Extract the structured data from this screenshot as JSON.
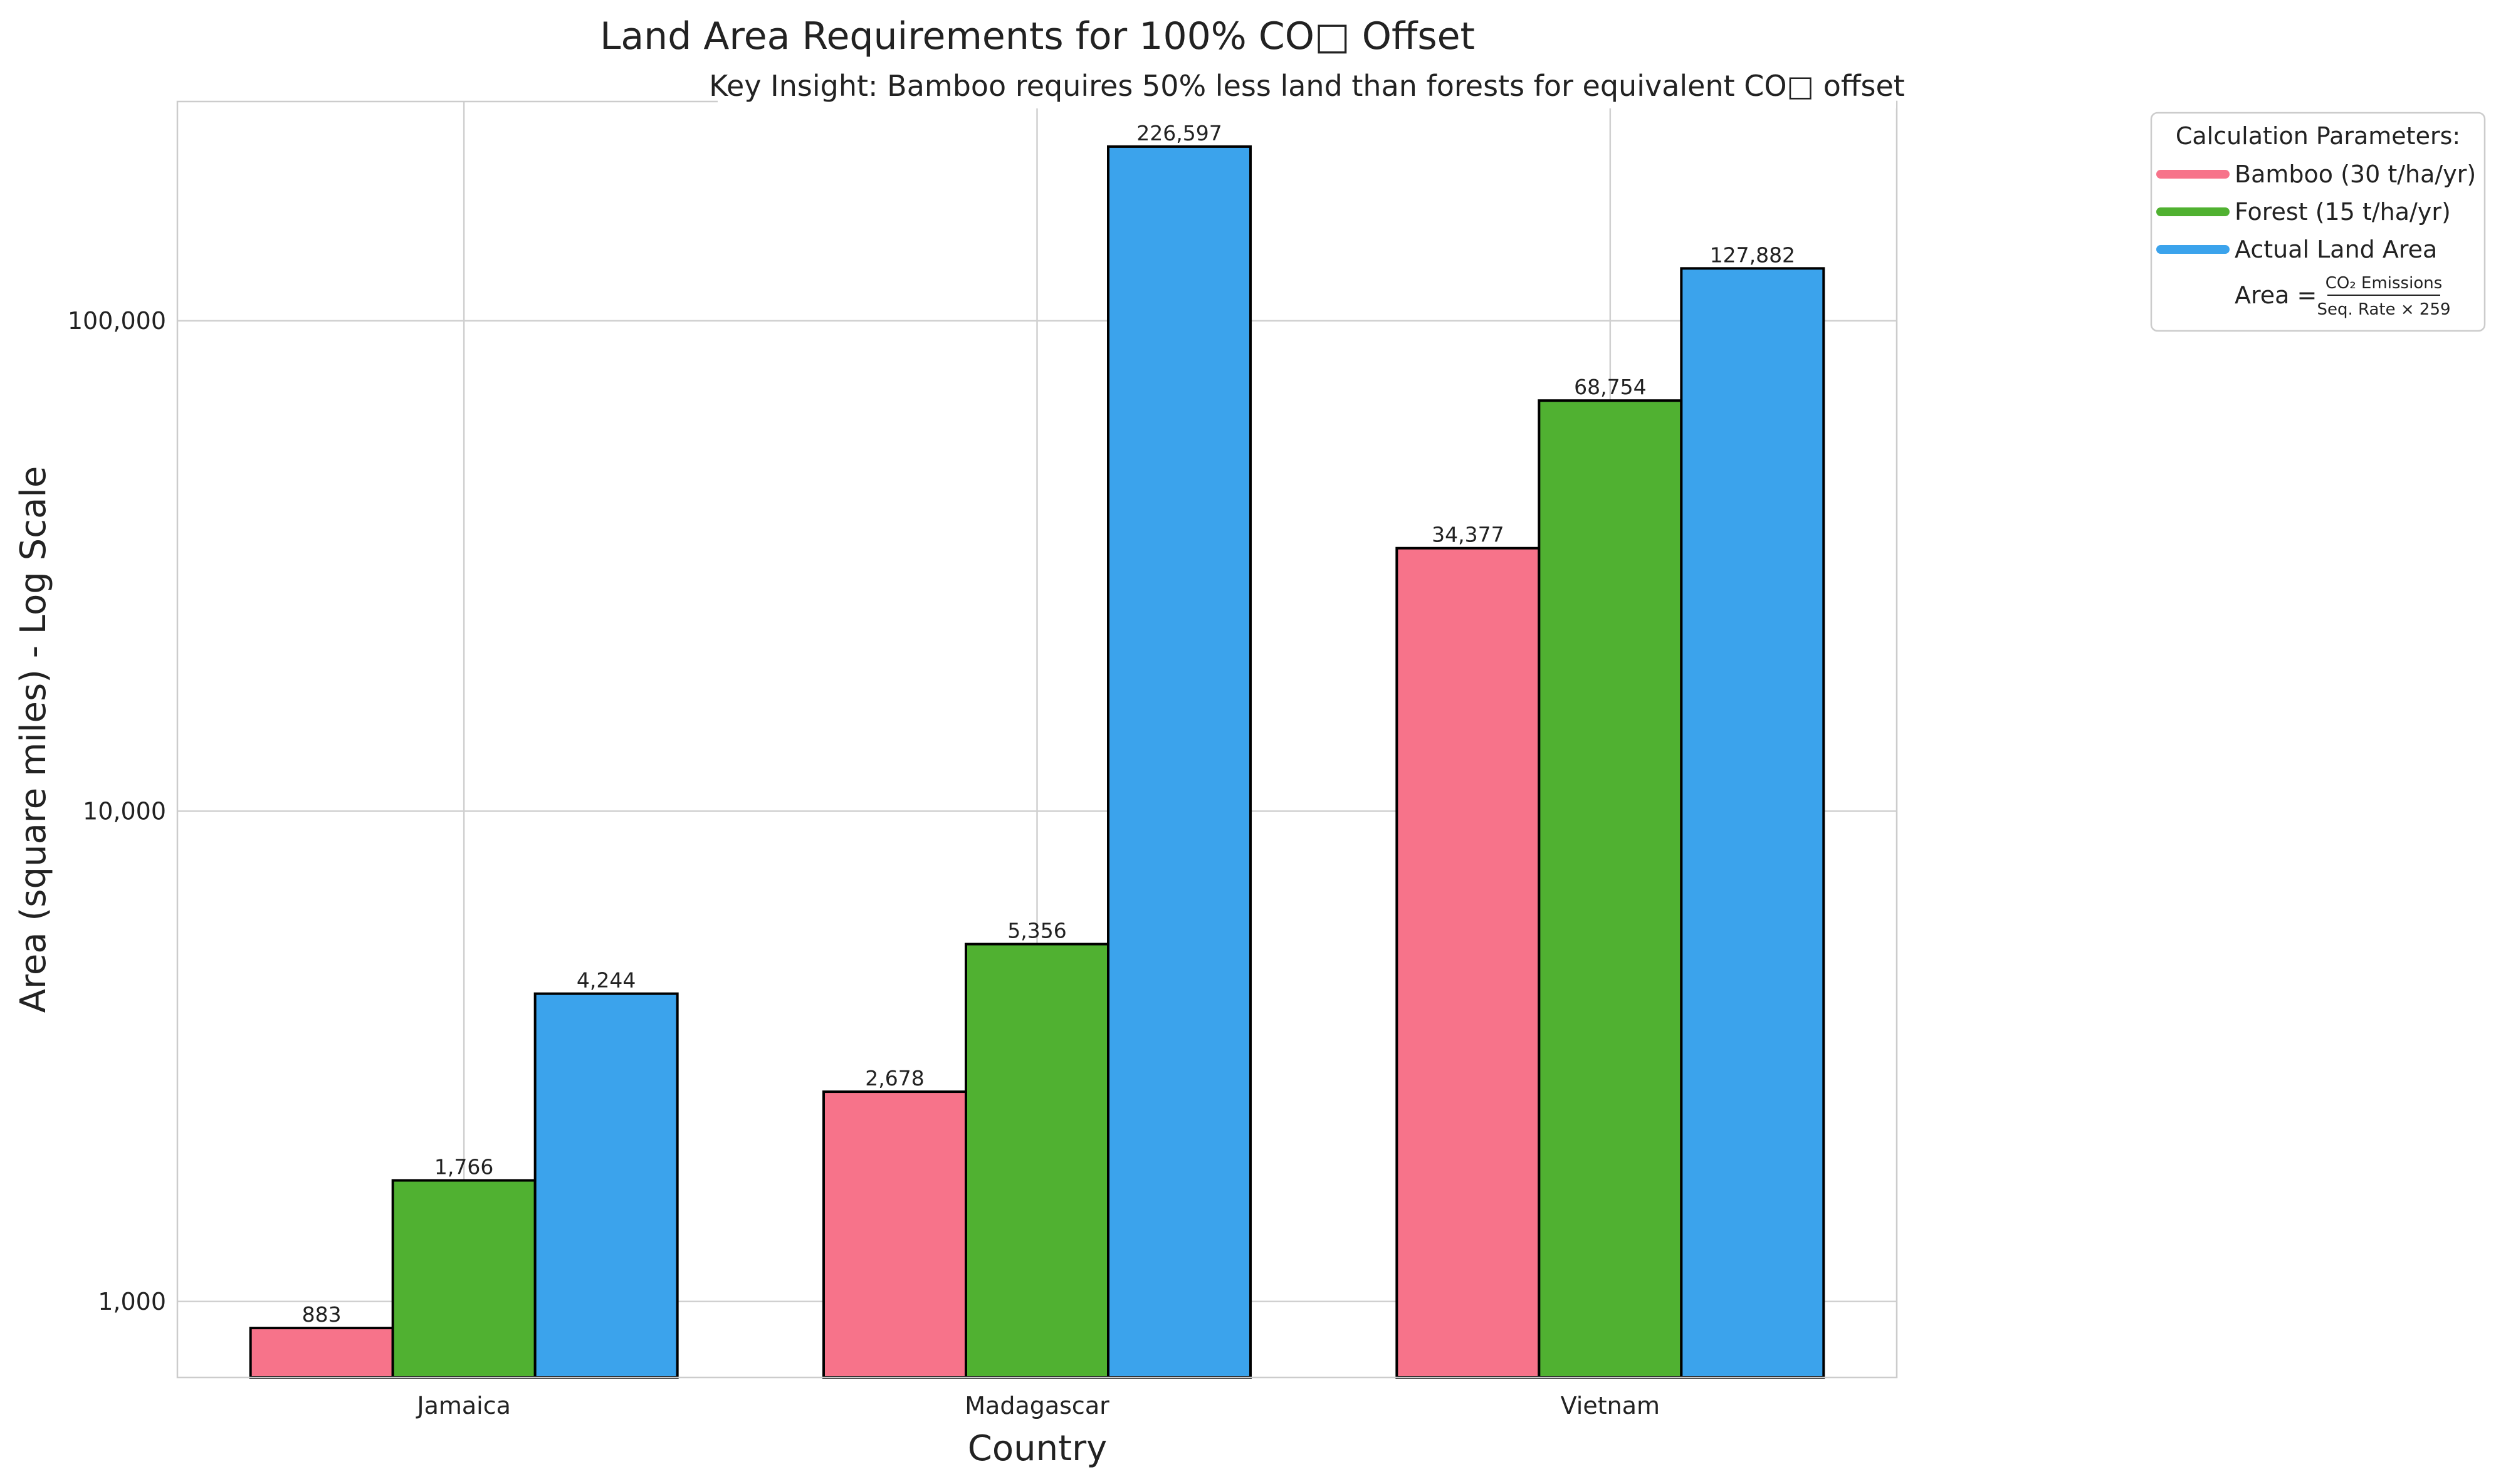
{
  "chart_data": {
    "type": "bar",
    "title": "Land Area Requirements for 100% CO□ Offset",
    "subtitle": "Key Insight: Bamboo requires 50% less land than forests for equivalent CO□ offset",
    "xlabel": "Country",
    "ylabel": "Area (square miles) - Log Scale",
    "yscale": "log",
    "ylim": [
      700,
      280000
    ],
    "yticks": [
      1000,
      10000,
      100000
    ],
    "ytick_labels": [
      "1,000",
      "10,000",
      "100,000"
    ],
    "grid": true,
    "categories": [
      "Jamaica",
      "Madagascar",
      "Vietnam"
    ],
    "series": [
      {
        "name": "Bamboo (30 t/ha/yr)",
        "color": "#f7738a",
        "values": [
          883,
          2678,
          34377
        ],
        "labels": [
          "883",
          "2,678",
          "34,377"
        ]
      },
      {
        "name": "Forest (15 t/ha/yr)",
        "color": "#50b131",
        "values": [
          1766,
          5356,
          68754
        ],
        "labels": [
          "1,766",
          "5,356",
          "68,754"
        ]
      },
      {
        "name": "Actual Land Area",
        "color": "#3ba3ec",
        "values": [
          4244,
          226597,
          127882
        ],
        "labels": [
          "4,244",
          "226,597",
          "127,882"
        ]
      }
    ],
    "legend": {
      "title": "Calculation Parameters:",
      "placement": "outside-top-right",
      "formula": {
        "prefix": "Area =",
        "numerator": "CO₂ Emissions",
        "denominator": "Seq. Rate × 259"
      }
    }
  }
}
